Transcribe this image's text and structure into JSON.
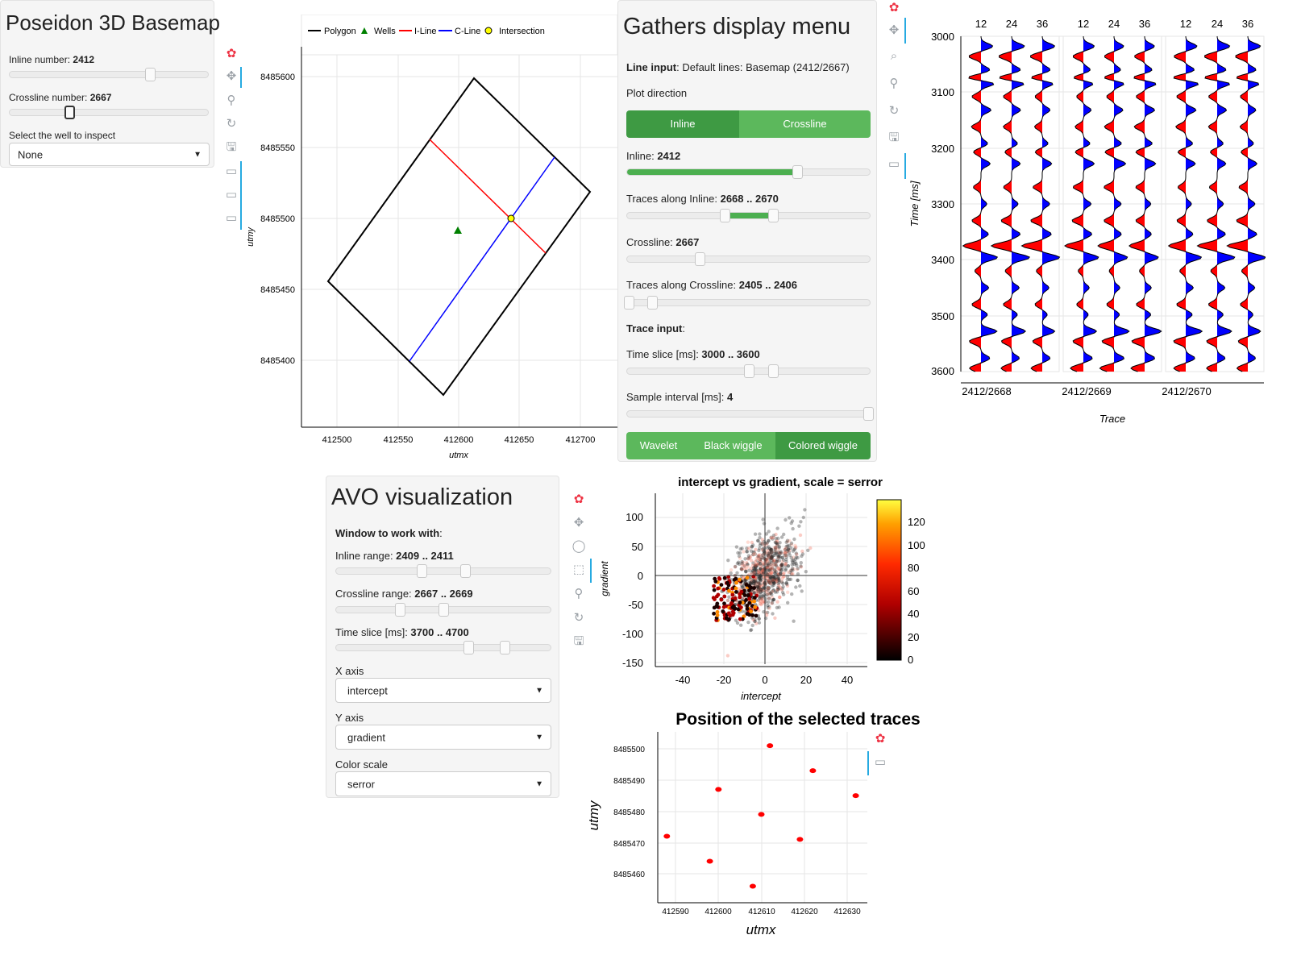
{
  "basemap_panel": {
    "title": "Poseidon 3D Basemap",
    "inline_label": "Inline number: ",
    "inline_value": "2412",
    "inline_fraction": 0.7,
    "crossline_label": "Crossline number: ",
    "crossline_value": "2667",
    "crossline_fraction": 0.3,
    "well_label": "Select the well to inspect",
    "well_value": "None"
  },
  "basemap_chart": {
    "legend": [
      "Polygon",
      "Wells",
      "I-Line",
      "C-Line",
      "Intersection"
    ],
    "xlabel": "utmx",
    "ylabel": "utmy",
    "xticks": [
      "412500",
      "412550",
      "412600",
      "412650",
      "412700"
    ],
    "yticks": [
      "8485600",
      "8485550",
      "8485500",
      "8485450",
      "8485400"
    ],
    "colors": {
      "polygon": "#000000",
      "wells": "#008000",
      "iline": "#ff0000",
      "cline": "#0000ff",
      "intersection": "#ffff00"
    }
  },
  "gathers_menu": {
    "title": "Gathers display menu",
    "line_input_label": "Line input",
    "line_input_value": ": Default lines: Basemap (2412/2667)",
    "plot_direction_label": "Plot direction",
    "direction_buttons": [
      "Inline",
      "Crossline"
    ],
    "inline_label": "Inline: ",
    "inline_value": "2412",
    "traces_inline_label": "Traces along Inline: ",
    "traces_inline_value": "2668 .. 2670",
    "crossline_label": "Crossline: ",
    "crossline_value": "2667",
    "traces_crossline_label": "Traces along Crossline: ",
    "traces_crossline_value": "2405 .. 2406",
    "trace_input_label": "Trace input",
    "trace_input_suffix": ":",
    "time_slice_label": "Time slice [ms]: ",
    "time_slice_value": "3000 .. 3600",
    "sample_interval_label": "Sample interval [ms]: ",
    "sample_interval_value": "4",
    "style_buttons": [
      "Wavelet",
      "Black wiggle",
      "Colored wiggle"
    ],
    "accent": "#4caf50"
  },
  "gathers_chart": {
    "top_ticks": [
      "12",
      "24",
      "36"
    ],
    "yticks": [
      "3000",
      "3100",
      "3200",
      "3300",
      "3400",
      "3500",
      "3600"
    ],
    "ylabel": "Time [ms]",
    "xlabel": "Trace",
    "gather_labels": [
      "2412/2668",
      "2412/2669",
      "2412/2670"
    ],
    "colors": {
      "positive": "#0000ff",
      "negative": "#ff0000"
    }
  },
  "avo_panel": {
    "title": "AVO visualization",
    "window_label": "Window to work with",
    "window_suffix": ":",
    "inline_range_label": "Inline range: ",
    "inline_range_value": "2409 .. 2411",
    "crossline_range_label": "Crossline range: ",
    "crossline_range_value": "2667 .. 2669",
    "time_slice_label": "Time slice [ms]: ",
    "time_slice_value": "3700 .. 4700",
    "xaxis_label": "X axis",
    "xaxis_value": "intercept",
    "yaxis_label": "Y axis",
    "yaxis_value": "gradient",
    "color_scale_label": "Color scale",
    "color_scale_value": "serror"
  },
  "scatter_chart": {
    "title": "intercept vs gradient, scale = serror",
    "xlabel": "intercept",
    "ylabel": "gradient",
    "xticks": [
      "-40",
      "-20",
      "0",
      "20",
      "40"
    ],
    "yticks": [
      "100",
      "50",
      "0",
      "-50",
      "-100",
      "-150"
    ],
    "colorbar_ticks": [
      "120",
      "100",
      "80",
      "60",
      "40",
      "20",
      "0"
    ]
  },
  "position_chart": {
    "title": "Position of the selected traces",
    "xlabel": "utmx",
    "ylabel": "utmy",
    "xticks": [
      "412590",
      "412600",
      "412610",
      "412620",
      "412630"
    ],
    "yticks": [
      "8485500",
      "8485490",
      "8485480",
      "8485470",
      "8485460"
    ],
    "points": [
      {
        "x": 412588,
        "y": 8485472
      },
      {
        "x": 412598,
        "y": 8485464
      },
      {
        "x": 412600,
        "y": 8485487
      },
      {
        "x": 412608,
        "y": 8485456
      },
      {
        "x": 412610,
        "y": 8485479
      },
      {
        "x": 412612,
        "y": 8485501
      },
      {
        "x": 412619,
        "y": 8485471
      },
      {
        "x": 412622,
        "y": 8485493
      },
      {
        "x": 412632,
        "y": 8485485
      }
    ],
    "color": "#ff0000"
  }
}
